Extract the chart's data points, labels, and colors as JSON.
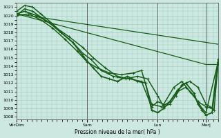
{
  "bg_color": "#cce8e0",
  "grid_color": "#99ccbe",
  "line_color": "#1a5c1a",
  "ylabel_min": 1008,
  "ylabel_max": 1021,
  "ytick_step": 1,
  "xlabel": "Pression niveau de la mer( hPa )",
  "xtick_labels": [
    "VérDim",
    "Sam",
    "Lun",
    "Mar|"
  ],
  "xtick_positions": [
    0.0,
    0.35,
    0.7,
    0.94
  ],
  "series": [
    {
      "x": [
        0.0,
        1.0
      ],
      "y": [
        1020.2,
        1016.6
      ],
      "lw": 0.9,
      "marker": null
    },
    {
      "x": [
        0.0,
        0.94,
        1.0
      ],
      "y": [
        1020.2,
        1014.2,
        1014.2
      ],
      "lw": 0.9,
      "marker": null
    },
    {
      "x": [
        0.0,
        0.04,
        0.08,
        0.12,
        0.18,
        0.22,
        0.28,
        0.33,
        0.37,
        0.42,
        0.48,
        0.54,
        0.6,
        0.65,
        0.7,
        0.73,
        0.76,
        0.79,
        0.82,
        0.86,
        0.9,
        0.94,
        0.96,
        0.98,
        1.0
      ],
      "y": [
        1020.5,
        1021.2,
        1021.0,
        1020.2,
        1019.0,
        1018.0,
        1016.8,
        1015.5,
        1014.8,
        1013.5,
        1012.8,
        1012.5,
        1012.8,
        1012.5,
        1010.5,
        1009.2,
        1009.5,
        1010.5,
        1011.8,
        1012.2,
        1011.5,
        1009.5,
        1009.2,
        1008.8,
        1014.5
      ],
      "lw": 1.1,
      "marker": "+"
    },
    {
      "x": [
        0.0,
        0.04,
        0.08,
        0.14,
        0.2,
        0.26,
        0.33,
        0.38,
        0.44,
        0.5,
        0.56,
        0.62,
        0.67,
        0.7,
        0.73,
        0.78,
        0.82,
        0.86,
        0.9,
        0.94,
        0.97,
        1.0
      ],
      "y": [
        1020.0,
        1020.8,
        1020.5,
        1019.5,
        1018.5,
        1017.5,
        1016.2,
        1015.0,
        1013.8,
        1012.8,
        1012.5,
        1012.2,
        1009.2,
        1009.8,
        1009.5,
        1011.5,
        1012.2,
        1011.0,
        1009.8,
        1009.2,
        1009.0,
        1014.8
      ],
      "lw": 1.1,
      "marker": "+"
    },
    {
      "x": [
        0.0,
        0.04,
        0.1,
        0.16,
        0.22,
        0.28,
        0.33,
        0.38,
        0.42,
        0.46,
        0.5,
        0.55,
        0.6,
        0.64,
        0.67,
        0.7,
        0.73,
        0.76,
        0.8,
        0.84,
        0.88,
        0.9,
        0.92,
        0.94,
        0.97,
        1.0
      ],
      "y": [
        1020.2,
        1020.5,
        1020.0,
        1019.2,
        1018.0,
        1016.8,
        1015.2,
        1013.8,
        1012.8,
        1012.5,
        1012.2,
        1012.8,
        1012.2,
        1012.0,
        1008.8,
        1008.5,
        1009.0,
        1009.8,
        1011.2,
        1012.0,
        1010.8,
        1009.5,
        1008.8,
        1008.2,
        1008.5,
        1014.2
      ],
      "lw": 1.3,
      "marker": "+"
    },
    {
      "x": [
        0.0,
        0.06,
        0.12,
        0.18,
        0.24,
        0.3,
        0.35,
        0.4,
        0.46,
        0.52,
        0.58,
        0.62,
        0.67,
        0.72,
        0.76,
        0.8,
        0.84,
        0.88,
        0.92,
        0.94,
        1.0
      ],
      "y": [
        1020.0,
        1020.2,
        1019.5,
        1018.5,
        1017.2,
        1015.8,
        1014.5,
        1013.8,
        1013.2,
        1013.0,
        1013.2,
        1013.5,
        1009.5,
        1009.2,
        1009.8,
        1011.0,
        1011.5,
        1010.5,
        1009.0,
        1008.5,
        1014.5
      ],
      "lw": 1.1,
      "marker": "+"
    }
  ]
}
